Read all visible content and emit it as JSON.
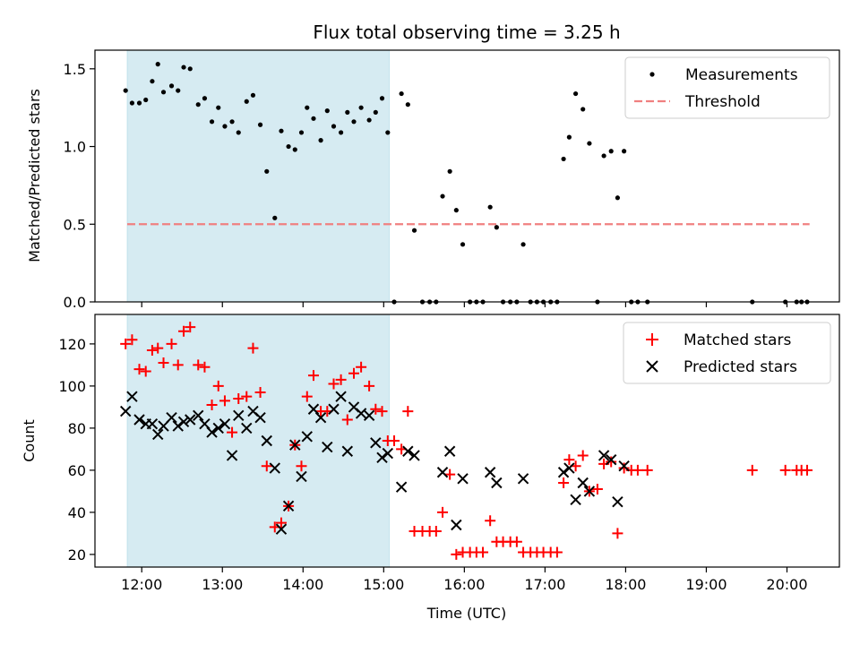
{
  "chart_data": [
    {
      "type": "scatter",
      "title": "Flux total observing time = 3.25 h",
      "xlabel": "",
      "ylabel": "Matched/Predicted stars",
      "xlim": [
        11.42,
        20.65
      ],
      "ylim": [
        0,
        1.62
      ],
      "yticks": [
        0,
        0.5,
        1.0,
        1.5
      ],
      "ytick_labels": [
        "0.0",
        "0.5",
        "1.0",
        "1.5"
      ],
      "highlight_span": [
        11.82,
        15.07
      ],
      "threshold": {
        "value": 0.5,
        "x_range": [
          11.82,
          20.28
        ],
        "color": "#f08080"
      },
      "legend": {
        "position": "top-right",
        "entries": [
          "Measurements",
          "Threshold"
        ]
      },
      "series": [
        {
          "name": "Measurements",
          "color": "#000000",
          "points": [
            [
              11.8,
              1.36
            ],
            [
              11.88,
              1.28
            ],
            [
              11.97,
              1.28
            ],
            [
              12.05,
              1.3
            ],
            [
              12.13,
              1.42
            ],
            [
              12.2,
              1.53
            ],
            [
              12.27,
              1.35
            ],
            [
              12.37,
              1.39
            ],
            [
              12.45,
              1.36
            ],
            [
              12.52,
              1.51
            ],
            [
              12.6,
              1.5
            ],
            [
              12.7,
              1.27
            ],
            [
              12.78,
              1.31
            ],
            [
              12.87,
              1.16
            ],
            [
              12.95,
              1.25
            ],
            [
              13.03,
              1.13
            ],
            [
              13.12,
              1.16
            ],
            [
              13.2,
              1.09
            ],
            [
              13.3,
              1.29
            ],
            [
              13.38,
              1.33
            ],
            [
              13.47,
              1.14
            ],
            [
              13.55,
              0.84
            ],
            [
              13.65,
              0.54
            ],
            [
              13.73,
              1.1
            ],
            [
              13.82,
              1.0
            ],
            [
              13.9,
              0.98
            ],
            [
              13.98,
              1.09
            ],
            [
              14.05,
              1.25
            ],
            [
              14.13,
              1.18
            ],
            [
              14.22,
              1.04
            ],
            [
              14.3,
              1.23
            ],
            [
              14.38,
              1.13
            ],
            [
              14.47,
              1.09
            ],
            [
              14.55,
              1.22
            ],
            [
              14.63,
              1.16
            ],
            [
              14.72,
              1.25
            ],
            [
              14.82,
              1.17
            ],
            [
              14.9,
              1.22
            ],
            [
              14.98,
              1.31
            ],
            [
              15.05,
              1.09
            ],
            [
              15.13,
              0.0
            ],
            [
              15.22,
              1.34
            ],
            [
              15.3,
              1.27
            ],
            [
              15.38,
              0.46
            ],
            [
              15.48,
              0.0
            ],
            [
              15.57,
              0.0
            ],
            [
              15.65,
              0.0
            ],
            [
              15.73,
              0.68
            ],
            [
              15.82,
              0.84
            ],
            [
              15.9,
              0.59
            ],
            [
              15.98,
              0.37
            ],
            [
              16.07,
              0.0
            ],
            [
              16.15,
              0.0
            ],
            [
              16.23,
              0.0
            ],
            [
              16.32,
              0.61
            ],
            [
              16.4,
              0.48
            ],
            [
              16.48,
              0.0
            ],
            [
              16.57,
              0.0
            ],
            [
              16.65,
              0.0
            ],
            [
              16.73,
              0.37
            ],
            [
              16.82,
              0.0
            ],
            [
              16.9,
              0.0
            ],
            [
              16.98,
              0.0
            ],
            [
              17.07,
              0.0
            ],
            [
              17.15,
              0.0
            ],
            [
              17.23,
              0.92
            ],
            [
              17.3,
              1.06
            ],
            [
              17.38,
              1.34
            ],
            [
              17.47,
              1.24
            ],
            [
              17.55,
              1.02
            ],
            [
              17.65,
              0.0
            ],
            [
              17.73,
              0.94
            ],
            [
              17.82,
              0.97
            ],
            [
              17.9,
              0.67
            ],
            [
              17.98,
              0.97
            ],
            [
              18.07,
              0.0
            ],
            [
              18.15,
              0.0
            ],
            [
              18.27,
              0.0
            ],
            [
              19.57,
              0.0
            ],
            [
              19.98,
              0.0
            ],
            [
              20.12,
              0.0
            ],
            [
              20.18,
              0.0
            ],
            [
              20.25,
              0.0
            ]
          ]
        }
      ]
    },
    {
      "type": "scatter",
      "title": "",
      "xlabel": "Time (UTC)",
      "ylabel": "Count",
      "xlim": [
        11.42,
        20.65
      ],
      "ylim": [
        14,
        134
      ],
      "yticks": [
        20,
        40,
        60,
        80,
        100,
        120
      ],
      "ytick_labels": [
        "20",
        "40",
        "60",
        "80",
        "100",
        "120"
      ],
      "xticks": [
        12,
        13,
        14,
        15,
        16,
        17,
        18,
        19,
        20
      ],
      "xtick_labels": [
        "12:00",
        "13:00",
        "14:00",
        "15:00",
        "16:00",
        "17:00",
        "18:00",
        "19:00",
        "20:00"
      ],
      "highlight_span": [
        11.82,
        15.07
      ],
      "legend": {
        "position": "top-right",
        "entries": [
          "Matched stars",
          "Predicted stars"
        ]
      },
      "series": [
        {
          "name": "Matched stars",
          "marker": "plus",
          "color": "#ff0000",
          "points": [
            [
              11.8,
              120
            ],
            [
              11.88,
              122
            ],
            [
              11.97,
              108
            ],
            [
              12.05,
              107
            ],
            [
              12.13,
              117
            ],
            [
              12.2,
              118
            ],
            [
              12.27,
              111
            ],
            [
              12.37,
              120
            ],
            [
              12.45,
              110
            ],
            [
              12.52,
              126
            ],
            [
              12.6,
              128
            ],
            [
              12.7,
              110
            ],
            [
              12.78,
              109
            ],
            [
              12.87,
              91
            ],
            [
              12.95,
              100
            ],
            [
              13.03,
              93
            ],
            [
              13.12,
              78
            ],
            [
              13.2,
              94
            ],
            [
              13.3,
              95
            ],
            [
              13.38,
              118
            ],
            [
              13.47,
              97
            ],
            [
              13.55,
              62
            ],
            [
              13.65,
              33
            ],
            [
              13.73,
              35
            ],
            [
              13.82,
              43
            ],
            [
              13.9,
              72
            ],
            [
              13.98,
              62
            ],
            [
              14.05,
              95
            ],
            [
              14.13,
              105
            ],
            [
              14.22,
              88
            ],
            [
              14.3,
              88
            ],
            [
              14.38,
              101
            ],
            [
              14.47,
              103
            ],
            [
              14.55,
              84
            ],
            [
              14.63,
              106
            ],
            [
              14.72,
              109
            ],
            [
              14.82,
              100
            ],
            [
              14.9,
              89
            ],
            [
              14.98,
              88
            ],
            [
              15.05,
              74
            ],
            [
              15.13,
              74
            ],
            [
              15.22,
              70
            ],
            [
              15.3,
              88
            ],
            [
              15.38,
              31
            ],
            [
              15.48,
              31
            ],
            [
              15.57,
              31
            ],
            [
              15.65,
              31
            ],
            [
              15.73,
              40
            ],
            [
              15.82,
              58
            ],
            [
              15.9,
              20
            ],
            [
              15.98,
              21
            ],
            [
              16.07,
              21
            ],
            [
              16.15,
              21
            ],
            [
              16.23,
              21
            ],
            [
              16.32,
              36
            ],
            [
              16.4,
              26
            ],
            [
              16.48,
              26
            ],
            [
              16.57,
              26
            ],
            [
              16.65,
              26
            ],
            [
              16.73,
              21
            ],
            [
              16.82,
              21
            ],
            [
              16.9,
              21
            ],
            [
              16.98,
              21
            ],
            [
              17.07,
              21
            ],
            [
              17.15,
              21
            ],
            [
              17.23,
              54
            ],
            [
              17.3,
              65
            ],
            [
              17.38,
              62
            ],
            [
              17.47,
              67
            ],
            [
              17.55,
              50
            ],
            [
              17.65,
              51
            ],
            [
              17.73,
              63
            ],
            [
              17.82,
              64
            ],
            [
              17.9,
              30
            ],
            [
              17.98,
              61
            ],
            [
              18.07,
              60
            ],
            [
              18.15,
              60
            ],
            [
              18.27,
              60
            ],
            [
              19.57,
              60
            ],
            [
              19.98,
              60
            ],
            [
              20.12,
              60
            ],
            [
              20.18,
              60
            ],
            [
              20.25,
              60
            ]
          ]
        },
        {
          "name": "Predicted stars",
          "marker": "x",
          "color": "#000000",
          "points": [
            [
              11.8,
              88
            ],
            [
              11.88,
              95
            ],
            [
              11.97,
              84
            ],
            [
              12.05,
              82
            ],
            [
              12.13,
              82
            ],
            [
              12.2,
              77
            ],
            [
              12.27,
              81
            ],
            [
              12.37,
              85
            ],
            [
              12.45,
              81
            ],
            [
              12.52,
              83
            ],
            [
              12.6,
              84
            ],
            [
              12.7,
              86
            ],
            [
              12.78,
              82
            ],
            [
              12.87,
              78
            ],
            [
              12.95,
              80
            ],
            [
              13.03,
              82
            ],
            [
              13.12,
              67
            ],
            [
              13.2,
              86
            ],
            [
              13.3,
              80
            ],
            [
              13.38,
              88
            ],
            [
              13.47,
              85
            ],
            [
              13.55,
              74
            ],
            [
              13.65,
              61
            ],
            [
              13.73,
              32
            ],
            [
              13.82,
              43
            ],
            [
              13.9,
              72
            ],
            [
              13.98,
              57
            ],
            [
              14.05,
              76
            ],
            [
              14.13,
              89
            ],
            [
              14.22,
              85
            ],
            [
              14.3,
              71
            ],
            [
              14.38,
              89
            ],
            [
              14.47,
              95
            ],
            [
              14.55,
              69
            ],
            [
              14.63,
              90
            ],
            [
              14.72,
              87
            ],
            [
              14.82,
              86
            ],
            [
              14.9,
              73
            ],
            [
              14.98,
              66
            ],
            [
              15.05,
              68
            ],
            [
              15.22,
              52
            ],
            [
              15.3,
              69
            ],
            [
              15.38,
              67
            ],
            [
              15.73,
              59
            ],
            [
              15.82,
              69
            ],
            [
              15.9,
              34
            ],
            [
              15.98,
              56
            ],
            [
              16.32,
              59
            ],
            [
              16.4,
              54
            ],
            [
              16.73,
              56
            ],
            [
              17.23,
              59
            ],
            [
              17.3,
              61
            ],
            [
              17.38,
              46
            ],
            [
              17.47,
              54
            ],
            [
              17.55,
              50
            ],
            [
              17.73,
              67
            ],
            [
              17.82,
              65
            ],
            [
              17.9,
              45
            ],
            [
              17.98,
              62
            ]
          ]
        }
      ]
    }
  ]
}
